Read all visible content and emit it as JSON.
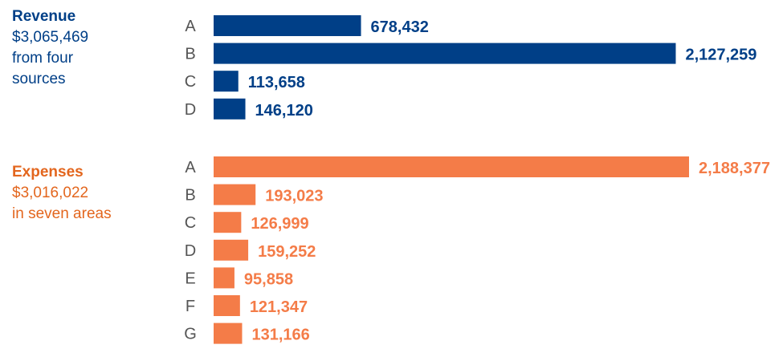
{
  "colors": {
    "revenue": "#003f87",
    "expenses": "#f47c48",
    "expenses_text": "#e3661e",
    "category_text": "#555555"
  },
  "revenue": {
    "title": "Revenue",
    "amount": "$3,065,469",
    "line1": "from four",
    "line2": "sources"
  },
  "expenses": {
    "title": "Expenses",
    "amount": "$3,016,022",
    "line1": "in seven areas"
  },
  "chart_data": [
    {
      "type": "bar",
      "orientation": "horizontal",
      "title": "Revenue",
      "categories": [
        "A",
        "B",
        "C",
        "D"
      ],
      "values": [
        678432,
        2127259,
        113658,
        146120
      ],
      "value_labels": [
        "678,432",
        "2,127,259",
        "113,658",
        "146,120"
      ],
      "xlim": [
        0,
        2188377
      ]
    },
    {
      "type": "bar",
      "orientation": "horizontal",
      "title": "Expenses",
      "categories": [
        "A",
        "B",
        "C",
        "D",
        "E",
        "F",
        "G"
      ],
      "values": [
        2188377,
        193023,
        126999,
        159252,
        95858,
        121347,
        131166
      ],
      "value_labels": [
        "2,188,377",
        "193,023",
        "126,999",
        "159,252",
        "95,858",
        "121,347",
        "131,166"
      ],
      "xlim": [
        0,
        2188377
      ]
    }
  ]
}
